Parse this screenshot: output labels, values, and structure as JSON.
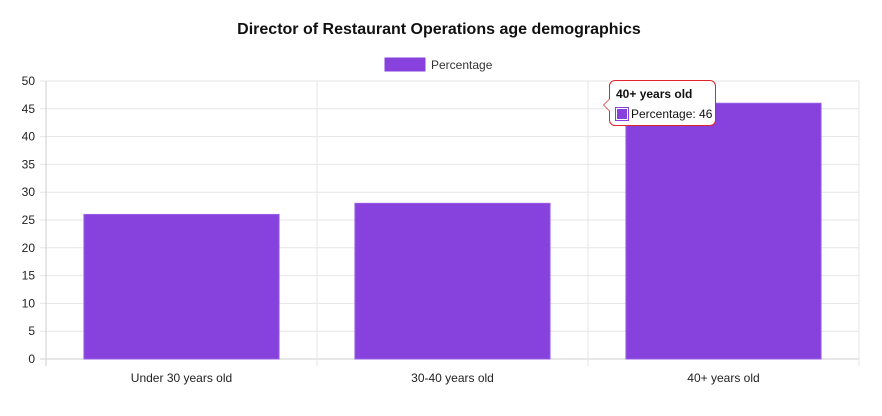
{
  "chart_data": {
    "type": "bar",
    "title": "Director of Restaurant Operations age demographics",
    "categories": [
      "Under 30 years old",
      "30-40 years old",
      "40+ years old"
    ],
    "series": [
      {
        "name": "Percentage",
        "values": [
          26,
          28,
          46
        ]
      }
    ],
    "ylim": [
      0,
      50
    ],
    "yticks": [
      0,
      5,
      10,
      15,
      20,
      25,
      30,
      35,
      40,
      45,
      50
    ],
    "legend_position": "top-center",
    "grid": true,
    "bar_color": "#8741dd",
    "tooltip": {
      "title": "40+ years old",
      "label": "Percentage: 46",
      "border_color": "#e0242c"
    }
  }
}
